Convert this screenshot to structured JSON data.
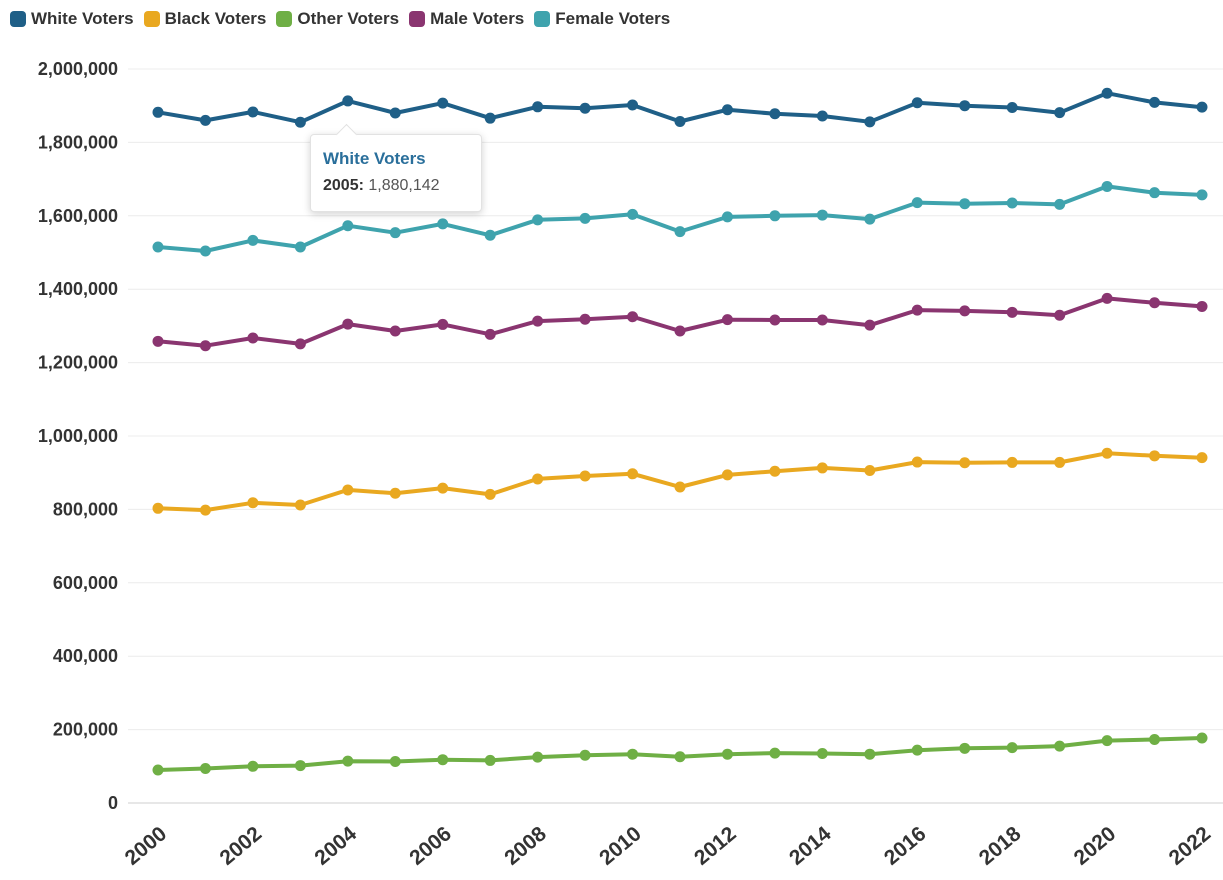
{
  "chart_data": {
    "type": "line",
    "x": [
      2000,
      2001,
      2002,
      2003,
      2004,
      2005,
      2006,
      2007,
      2008,
      2009,
      2010,
      2011,
      2012,
      2013,
      2014,
      2015,
      2016,
      2017,
      2018,
      2019,
      2020,
      2021,
      2022
    ],
    "x_tick_labels": [
      "2000",
      "2002",
      "2004",
      "2006",
      "2008",
      "2010",
      "2012",
      "2014",
      "2016",
      "2018",
      "2020",
      "2022"
    ],
    "ylim": [
      0,
      2000000
    ],
    "y_tick_labels": [
      "0",
      "200,000",
      "400,000",
      "600,000",
      "800,000",
      "1,000,000",
      "1,200,000",
      "1,400,000",
      "1,600,000",
      "1,800,000",
      "2,000,000"
    ],
    "grid": "horizontal",
    "legend_position": "top-left",
    "series": [
      {
        "name": "White Voters",
        "color": "#1f5f87",
        "values": [
          1882000,
          1860000,
          1883000,
          1855000,
          1913000,
          1880142,
          1907000,
          1866000,
          1897000,
          1893000,
          1902000,
          1857000,
          1889000,
          1878000,
          1872000,
          1856000,
          1908000,
          1900000,
          1895000,
          1881000,
          1934000,
          1909000,
          1896000
        ]
      },
      {
        "name": "Black Voters",
        "color": "#e9a820",
        "values": [
          803000,
          798000,
          818000,
          812000,
          853000,
          844000,
          858000,
          841000,
          883000,
          891000,
          897000,
          861000,
          894000,
          904000,
          913000,
          906000,
          929000,
          927000,
          928000,
          928000,
          953000,
          946000,
          941000
        ]
      },
      {
        "name": "Other Voters",
        "color": "#6faf45",
        "values": [
          90000,
          94000,
          100000,
          102000,
          114000,
          113000,
          118000,
          116000,
          125000,
          130000,
          133000,
          126000,
          133000,
          136000,
          135000,
          133000,
          144000,
          149000,
          151000,
          155000,
          170000,
          173000,
          177000
        ]
      },
      {
        "name": "Male Voters",
        "color": "#8a3570",
        "values": [
          1258000,
          1246000,
          1267000,
          1251000,
          1305000,
          1286000,
          1304000,
          1277000,
          1313000,
          1318000,
          1325000,
          1286000,
          1317000,
          1316000,
          1316000,
          1302000,
          1343000,
          1341000,
          1337000,
          1329000,
          1375000,
          1363000,
          1353000
        ]
      },
      {
        "name": "Female Voters",
        "color": "#3fa3ad",
        "values": [
          1515000,
          1504000,
          1533000,
          1515000,
          1573000,
          1554000,
          1578000,
          1547000,
          1589000,
          1593000,
          1604000,
          1557000,
          1597000,
          1600000,
          1602000,
          1591000,
          1636000,
          1633000,
          1635000,
          1631000,
          1680000,
          1663000,
          1657000
        ]
      }
    ],
    "tooltip": {
      "series": "White Voters",
      "year": "2005:",
      "value": "1,880,142"
    }
  }
}
